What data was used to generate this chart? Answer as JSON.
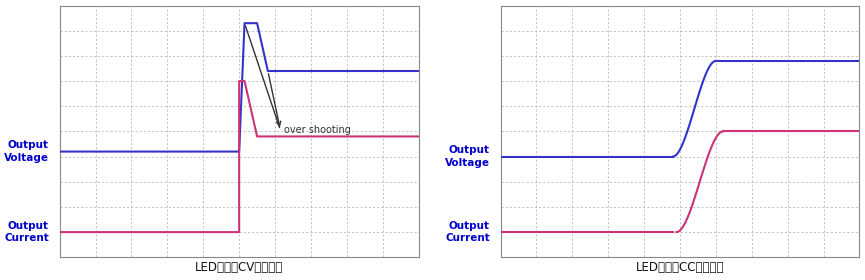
{
  "fig_width": 8.65,
  "fig_height": 2.8,
  "dpi": 100,
  "bg_color": "#ffffff",
  "panel_bg": "#ffffff",
  "grid_color": "#aaaaaa",
  "voltage_color": "#3333cc",
  "current_color": "#cc3377",
  "arrow_color": "#333333",
  "label_color": "#0000cc",
  "subtitle1": "LED负载，CV优先模式",
  "subtitle2": "LED负载，CC优先模式",
  "ylabel_voltage": "Output\nVoltage",
  "ylabel_current": "Output\nCurrent",
  "overshoot_label": "over shooting"
}
